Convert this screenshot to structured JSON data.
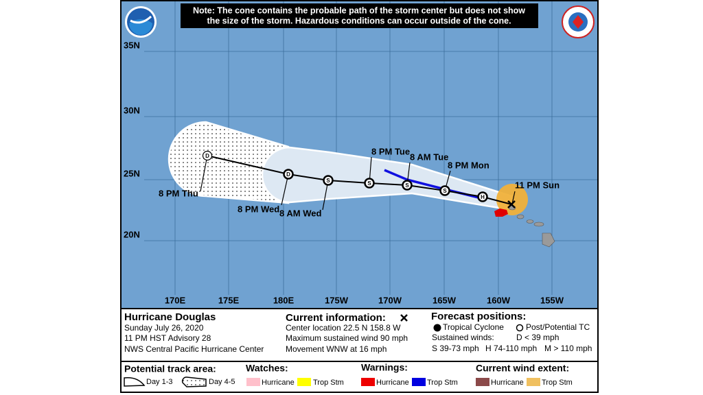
{
  "note": [
    "Note: The cone contains the probable path of the storm center but does not show",
    "the size of the storm. Hazardous conditions can occur outside of the cone."
  ],
  "map": {
    "lat_labels": [
      "35N",
      "30N",
      "25N",
      "20N"
    ],
    "lon_labels": [
      "170E",
      "175E",
      "180E",
      "175W",
      "170W",
      "165W",
      "160W",
      "155W"
    ],
    "forecast_labels": [
      "11 PM Sun",
      "8 PM Mon",
      "8 AM Tue",
      "8 PM Tue",
      "8 AM Wed",
      "8 PM Wed",
      "8 PM Thu"
    ],
    "markers": [
      "H",
      "S",
      "S",
      "S",
      "S",
      "D",
      "D"
    ]
  },
  "legend": {
    "storm_name": "Hurricane Douglas",
    "date": "Sunday July 26, 2020",
    "advisory": "11 PM HST Advisory 28",
    "center": "NWS Central Pacific Hurricane Center",
    "current_title": "Current information:",
    "current_lines": [
      "Center location 22.5 N 158.8 W",
      "Maximum sustained wind 90 mph",
      "Movement WNW at 16 mph"
    ],
    "forecast_title": "Forecast positions:",
    "tropical_cyclone": "Tropical Cyclone",
    "post_tc": "Post/Potential TC",
    "sustained_title": "Sustained winds:",
    "d_range": "D < 39 mph",
    "s_range": "S 39-73 mph",
    "h_range": "H 74-110 mph",
    "m_range": "M > 110 mph",
    "track_title": "Potential track area:",
    "day13": "Day 1-3",
    "day45": "Day 4-5",
    "watches_title": "Watches:",
    "watch_hurricane": "Hurricane",
    "watch_ts": "Trop Stm",
    "warnings_title": "Warnings:",
    "warning_hurricane": "Hurricane",
    "warning_ts": "Trop Stm",
    "wind_title": "Current wind extent:",
    "wind_hurricane": "Hurricane",
    "wind_ts": "Trop Stm"
  }
}
